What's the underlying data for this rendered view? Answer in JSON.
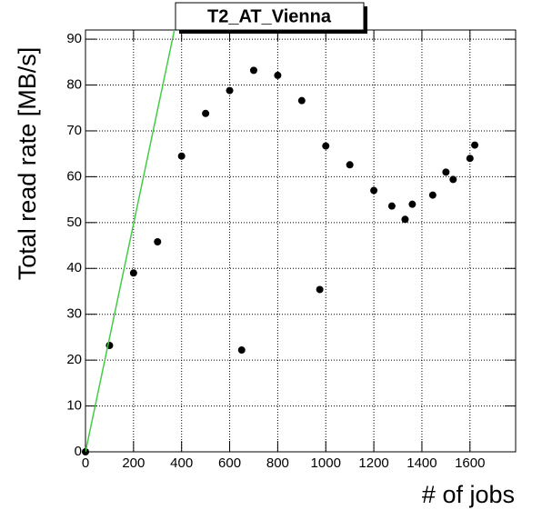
{
  "chart_data": {
    "type": "scatter",
    "title": "T2_AT_Vienna",
    "x_label": "# of jobs",
    "y_label": "Total read rate [MB/s]",
    "xlim": [
      0,
      1790
    ],
    "ylim": [
      0,
      92
    ],
    "xticks": [
      0,
      200,
      400,
      600,
      800,
      1000,
      1200,
      1400,
      1600
    ],
    "yticks": [
      0,
      10,
      20,
      30,
      40,
      50,
      60,
      70,
      80,
      90
    ],
    "grid": true,
    "series": [
      {
        "color": "#000000",
        "marker": "circle",
        "x": [
          0,
          100,
          200,
          300,
          400,
          500,
          600,
          650,
          700,
          800,
          900,
          975,
          1000,
          1100,
          1200,
          1275,
          1330,
          1360,
          1445,
          1500,
          1530,
          1600,
          1620
        ],
        "values": [
          0,
          23.2,
          39,
          45.8,
          64.5,
          73.8,
          78.8,
          22.2,
          83.2,
          82.1,
          76.6,
          35.4,
          66.7,
          62.6,
          57,
          53.6,
          50.7,
          54,
          56,
          61,
          59.4,
          64,
          66.9
        ]
      },
      {
        "color": "#44cc44",
        "marker": "line",
        "x": [
          0,
          370
        ],
        "values": [
          0,
          92
        ]
      }
    ]
  }
}
